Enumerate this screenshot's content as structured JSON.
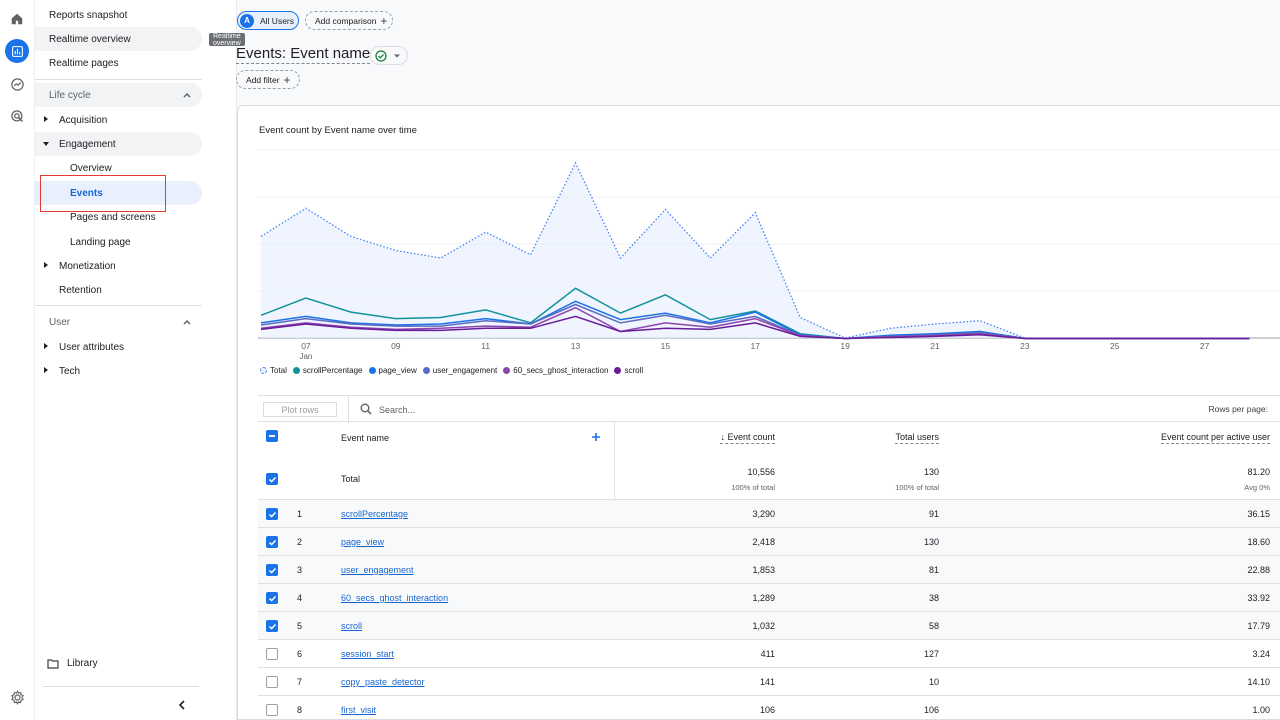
{
  "rail": {
    "icons": [
      "home-icon",
      "reports-icon",
      "explore-icon",
      "advertising-icon"
    ],
    "settings_icon": "gear-icon"
  },
  "nav": {
    "top_items": [
      "Reports snapshot",
      "Realtime overview",
      "Realtime pages"
    ],
    "tooltip": "Realtime overview",
    "lifecycle": {
      "label": "Life cycle",
      "groups": [
        {
          "label": "Acquisition"
        },
        {
          "label": "Engagement",
          "children": [
            "Overview",
            "Events",
            "Pages and screens",
            "Landing page"
          ]
        },
        {
          "label": "Monetization"
        },
        {
          "label": "Retention"
        }
      ]
    },
    "user": {
      "label": "User",
      "groups": [
        "User attributes",
        "Tech"
      ]
    },
    "library": "Library"
  },
  "header": {
    "segment_chip": {
      "avatar": "A",
      "label": "All Users"
    },
    "compare_chip": "Add comparison",
    "title": "Events: Event name",
    "add_filter": "Add filter"
  },
  "chart_data": {
    "type": "line",
    "title": "Event count by Event name over time",
    "x": [
      6,
      7,
      8,
      9,
      10,
      11,
      12,
      13,
      14,
      15,
      16,
      17,
      18,
      19,
      20,
      21,
      22,
      23,
      24,
      25,
      26,
      27,
      28
    ],
    "x_tick_labels": [
      "07",
      "09",
      "11",
      "13",
      "15",
      "17",
      "19",
      "21",
      "23",
      "25",
      "27"
    ],
    "x_sub_label": "Jan",
    "series": [
      {
        "name": "Total",
        "color": "#4285f4",
        "style": "dotted-area",
        "values": [
          1500,
          1760,
          1500,
          1370,
          1300,
          1540,
          1330,
          2180,
          1300,
          1750,
          1300,
          1720,
          750,
          560,
          650,
          690,
          720,
          560,
          560,
          560,
          560,
          560,
          560
        ]
      },
      {
        "name": "scrollPercentage",
        "color": "#12939a",
        "values": [
          770,
          930,
          800,
          740,
          750,
          820,
          700,
          1020,
          790,
          960,
          730,
          810,
          600,
          555,
          580,
          590,
          620,
          555,
          555,
          555,
          555,
          555,
          555
        ]
      },
      {
        "name": "page_view",
        "color": "#1a73e8",
        "values": [
          700,
          760,
          700,
          680,
          690,
          740,
          690,
          900,
          730,
          790,
          700,
          800,
          590,
          555,
          585,
          600,
          620,
          555,
          555,
          555,
          555,
          555,
          555
        ]
      },
      {
        "name": "user_engagement",
        "color": "#5c6bc0",
        "values": [
          680,
          740,
          690,
          670,
          670,
          720,
          690,
          870,
          700,
          770,
          690,
          760,
          585,
          555,
          575,
          590,
          610,
          555,
          555,
          555,
          555,
          555,
          555
        ]
      },
      {
        "name": "60_secs_ghost_interaction",
        "color": "#8e44ad",
        "values": [
          650,
          700,
          660,
          640,
          650,
          670,
          660,
          840,
          620,
          700,
          660,
          740,
          580,
          555,
          570,
          580,
          600,
          555,
          555,
          555,
          555,
          555,
          555
        ]
      },
      {
        "name": "scroll",
        "color": "#6a1b9a",
        "values": [
          640,
          690,
          650,
          630,
          630,
          650,
          650,
          760,
          620,
          650,
          640,
          700,
          575,
          555,
          565,
          575,
          590,
          555,
          555,
          555,
          555,
          555,
          555
        ]
      }
    ],
    "grid": true,
    "legend": "bottom-left"
  },
  "table": {
    "plot_rows": "Plot rows",
    "search_placeholder": "Search...",
    "rows_per_page": "Rows per page:",
    "headers": {
      "name": "Event name",
      "count": "Event count",
      "users": "Total users",
      "per_user": "Event count per active user"
    },
    "total": {
      "label": "Total",
      "count": "10,556",
      "count_sub": "100% of total",
      "users": "130",
      "users_sub": "100% of total",
      "per_user": "81.20",
      "per_user_sub": "Avg 0%"
    },
    "rows": [
      {
        "idx": "1",
        "name": "scrollPercentage",
        "count": "3,290",
        "users": "91",
        "per_user": "36.15",
        "checked": true
      },
      {
        "idx": "2",
        "name": "page_view",
        "count": "2,418",
        "users": "130",
        "per_user": "18.60",
        "checked": true
      },
      {
        "idx": "3",
        "name": "user_engagement",
        "count": "1,853",
        "users": "81",
        "per_user": "22.88",
        "checked": true
      },
      {
        "idx": "4",
        "name": "60_secs_ghost_interaction",
        "count": "1,289",
        "users": "38",
        "per_user": "33.92",
        "checked": true
      },
      {
        "idx": "5",
        "name": "scroll",
        "count": "1,032",
        "users": "58",
        "per_user": "17.79",
        "checked": true
      },
      {
        "idx": "6",
        "name": "session_start",
        "count": "411",
        "users": "127",
        "per_user": "3.24",
        "checked": false
      },
      {
        "idx": "7",
        "name": "copy_paste_detector",
        "count": "141",
        "users": "10",
        "per_user": "14.10",
        "checked": false
      },
      {
        "idx": "8",
        "name": "first_visit",
        "count": "106",
        "users": "106",
        "per_user": "1.00",
        "checked": false
      }
    ]
  }
}
